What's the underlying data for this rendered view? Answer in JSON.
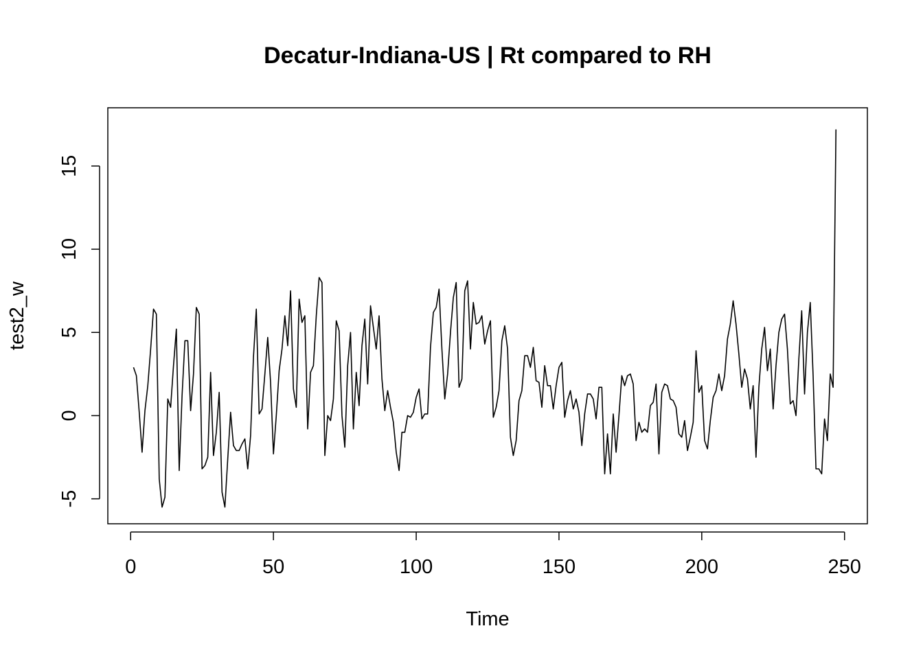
{
  "chart_data": {
    "type": "line",
    "title": "Decatur-Indiana-US | Rt compared to RH",
    "xlabel": "Time",
    "ylabel": "test2_w",
    "xlim": [
      -8,
      258
    ],
    "ylim": [
      -6.5,
      18.5
    ],
    "x_ticks": [
      0,
      50,
      100,
      150,
      200,
      250
    ],
    "y_ticks": [
      -5,
      0,
      5,
      10,
      15
    ],
    "grid": false,
    "series": [
      {
        "color": "#000000",
        "x_start": 1,
        "values": [
          2.9,
          2.4,
          0.2,
          -2.2,
          0.3,
          1.8,
          4.0,
          6.4,
          6.1,
          -3.8,
          -5.5,
          -4.9,
          1.0,
          0.5,
          3.0,
          5.2,
          -3.3,
          1.2,
          4.5,
          4.5,
          0.3,
          2.5,
          6.5,
          6.1,
          -3.2,
          -3.0,
          -2.5,
          2.6,
          -2.4,
          -1.0,
          1.4,
          -4.6,
          -5.5,
          -2.6,
          0.2,
          -1.8,
          -2.1,
          -2.1,
          -1.7,
          -1.4,
          -3.2,
          -1.2,
          3.5,
          6.4,
          0.1,
          0.4,
          2.5,
          4.7,
          2.0,
          -2.3,
          0.0,
          2.7,
          4.0,
          6.0,
          4.2,
          7.5,
          1.6,
          0.5,
          7.0,
          5.6,
          6.0,
          -0.8,
          2.6,
          3.0,
          6.0,
          8.3,
          8.0,
          -2.4,
          0.0,
          -0.3,
          1.0,
          5.7,
          5.1,
          0.0,
          -1.9,
          3.0,
          5.0,
          -0.8,
          2.6,
          0.6,
          4.2,
          5.8,
          1.9,
          6.6,
          5.3,
          4.0,
          6.0,
          2.2,
          0.3,
          1.5,
          0.5,
          -0.4,
          -2.2,
          -3.3,
          -1.0,
          -1.0,
          0.0,
          -0.1,
          0.2,
          1.1,
          1.6,
          -0.2,
          0.1,
          0.1,
          4.1,
          6.2,
          6.5,
          7.6,
          4.0,
          1.0,
          2.5,
          5.0,
          7.1,
          8.0,
          1.7,
          2.2,
          7.5,
          8.1,
          4.0,
          6.8,
          5.5,
          5.6,
          6.0,
          4.3,
          5.1,
          5.7,
          -0.1,
          0.5,
          1.5,
          4.5,
          5.4,
          4.0,
          -1.3,
          -2.4,
          -1.5,
          0.9,
          1.5,
          3.6,
          3.6,
          2.9,
          4.1,
          2.1,
          2.0,
          0.5,
          3.0,
          1.8,
          1.8,
          0.4,
          1.8,
          2.9,
          3.2,
          -0.1,
          0.9,
          1.5,
          0.4,
          1.0,
          0.2,
          -1.8,
          0.1,
          1.3,
          1.3,
          1.0,
          -0.2,
          1.7,
          1.7,
          -3.5,
          -1.1,
          -3.5,
          0.1,
          -2.2,
          0.0,
          2.4,
          1.8,
          2.4,
          2.5,
          1.9,
          -1.5,
          -0.4,
          -1.0,
          -0.8,
          -1.0,
          0.6,
          0.8,
          1.9,
          -2.3,
          1.4,
          1.9,
          1.8,
          1.0,
          0.9,
          0.5,
          -1.1,
          -1.3,
          -0.3,
          -2.1,
          -1.3,
          -0.4,
          3.9,
          1.4,
          1.8,
          -1.5,
          -2.0,
          -0.3,
          1.1,
          1.5,
          2.5,
          1.5,
          2.4,
          4.6,
          5.5,
          6.9,
          5.5,
          3.7,
          1.7,
          2.8,
          2.2,
          0.4,
          1.8,
          -2.5,
          1.7,
          4.0,
          5.3,
          2.7,
          4.0,
          0.4,
          3.0,
          5.0,
          5.8,
          6.1,
          4.0,
          0.7,
          0.9,
          0.0,
          3.4,
          6.3,
          1.3,
          5.0,
          6.8,
          2.4,
          -3.2,
          -3.2,
          -3.5,
          -0.2,
          -1.5,
          2.5,
          1.7,
          17.2
        ]
      }
    ]
  }
}
